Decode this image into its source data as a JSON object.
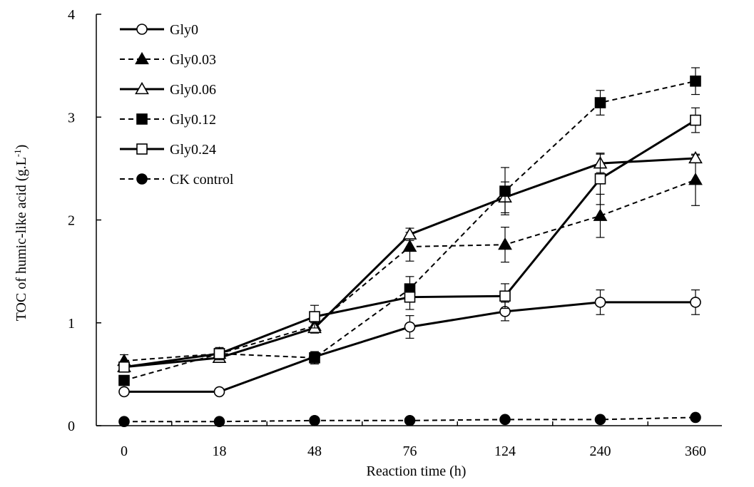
{
  "chart_data": {
    "type": "line",
    "title": "",
    "xlabel": "Reaction time (h)",
    "ylabel": "TOC of humic-like acid (g.L",
    "ylabel_sup": "-1",
    "ylabel_close": ")",
    "categories": [
      "0",
      "18",
      "48",
      "76",
      "124",
      "240",
      "360"
    ],
    "ylim": [
      0,
      4
    ],
    "yticks": [
      "0",
      "1",
      "2",
      "3",
      "4"
    ],
    "grid": false,
    "legend_position": "top-left",
    "series": [
      {
        "name": "Gly0",
        "style": "solid",
        "marker": "circle-open",
        "values": [
          0.33,
          0.33,
          0.67,
          0.96,
          1.11,
          1.2,
          1.2
        ],
        "errors": [
          0,
          0,
          0.05,
          0.11,
          0.09,
          0.12,
          0.12
        ]
      },
      {
        "name": "Gly0.03",
        "style": "dashed",
        "marker": "triangle-filled",
        "values": [
          0.63,
          0.7,
          0.97,
          1.74,
          1.76,
          2.04,
          2.39
        ],
        "errors": [
          0.06,
          0.04,
          0.05,
          0.14,
          0.17,
          0.21,
          0.25
        ]
      },
      {
        "name": "Gly0.06",
        "style": "solid",
        "marker": "triangle-open",
        "values": [
          0.57,
          0.66,
          0.95,
          1.86,
          2.22,
          2.55,
          2.6
        ],
        "errors": [
          0.04,
          0.04,
          0.05,
          0.06,
          0.15,
          0.09,
          0.03
        ]
      },
      {
        "name": "Gly0.12",
        "style": "dashed",
        "marker": "square-filled",
        "values": [
          0.44,
          0.7,
          0.66,
          1.33,
          2.28,
          3.14,
          3.35
        ],
        "errors": [
          0.04,
          0.04,
          0.06,
          0.12,
          0.23,
          0.12,
          0.13
        ]
      },
      {
        "name": "Gly0.24",
        "style": "solid",
        "marker": "square-open",
        "values": [
          0.57,
          0.7,
          1.06,
          1.25,
          1.26,
          2.4,
          2.97
        ],
        "errors": [
          0.04,
          0.06,
          0.11,
          0.12,
          0.12,
          0.25,
          0.12
        ]
      },
      {
        "name": "CK control",
        "style": "dashed",
        "marker": "circle-filled",
        "values": [
          0.04,
          0.04,
          0.05,
          0.05,
          0.06,
          0.06,
          0.08
        ],
        "errors": [
          0,
          0,
          0,
          0,
          0,
          0,
          0
        ]
      }
    ]
  }
}
